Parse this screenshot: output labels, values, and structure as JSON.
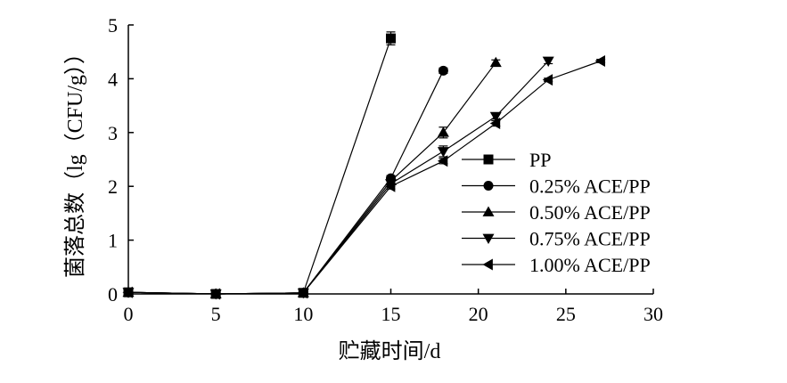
{
  "chart_data": {
    "type": "line",
    "xlabel": "贮藏时间/d",
    "ylabel": "菌落总数（lg（CFU/g））",
    "xlim": [
      0,
      30
    ],
    "ylim": [
      0,
      5
    ],
    "xticks": [
      0,
      5,
      10,
      15,
      20,
      25,
      30
    ],
    "yticks": [
      0,
      1,
      2,
      3,
      4,
      5
    ],
    "grid": false,
    "legend_position": "center-right",
    "series": [
      {
        "name": "PP",
        "marker": "square",
        "x": [
          0,
          5,
          10,
          15
        ],
        "y": [
          0.03,
          0.0,
          0.02,
          4.75
        ],
        "err": [
          0.03,
          0.03,
          0.03,
          0.12
        ]
      },
      {
        "name": "0.25% ACE/PP",
        "marker": "circle",
        "x": [
          0,
          5,
          10,
          15,
          18
        ],
        "y": [
          0.03,
          0.0,
          0.02,
          2.15,
          4.15
        ],
        "err": [
          0.03,
          0.03,
          0.03,
          0.05,
          0.05
        ]
      },
      {
        "name": "0.50% ACE/PP",
        "marker": "triangle-up",
        "x": [
          0,
          5,
          10,
          15,
          18,
          21
        ],
        "y": [
          0.03,
          0.0,
          0.02,
          2.1,
          3.0,
          4.3
        ],
        "err": [
          0.03,
          0.03,
          0.03,
          0.05,
          0.1,
          0.05
        ]
      },
      {
        "name": "0.75% ACE/PP",
        "marker": "triangle-down",
        "x": [
          0,
          5,
          10,
          15,
          18,
          21,
          24
        ],
        "y": [
          0.03,
          0.0,
          0.02,
          2.05,
          2.65,
          3.3,
          4.33
        ],
        "err": [
          0.03,
          0.03,
          0.03,
          0.05,
          0.1,
          0.05,
          0.05
        ]
      },
      {
        "name": "1.00% ACE/PP",
        "marker": "triangle-left",
        "x": [
          0,
          5,
          10,
          15,
          18,
          21,
          24,
          27
        ],
        "y": [
          0.03,
          0.0,
          0.02,
          2.0,
          2.47,
          3.17,
          3.98,
          4.33
        ],
        "err": [
          0.03,
          0.03,
          0.03,
          0.05,
          0.05,
          0.05,
          0.03,
          0.03
        ]
      }
    ]
  }
}
